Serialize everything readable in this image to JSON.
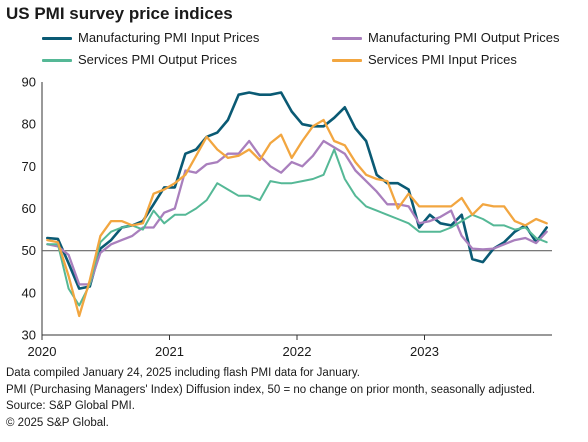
{
  "title": "US PMI survey price indices",
  "notes": [
    "Data compiled January 24, 2025 including flash PMI data for January.",
    "PMI (Purchasing Managers' Index) Diffusion index, 50 = no change on prior month, seasonally adjusted.",
    "Source: S&P Global PMI.",
    "© 2025 S&P Global."
  ],
  "chart_data": {
    "type": "line",
    "title": "US PMI survey price indices",
    "ylim": [
      30,
      90
    ],
    "yticks": [
      30,
      40,
      50,
      60,
      70,
      80,
      90
    ],
    "xticks": [
      "2020",
      "2021",
      "2022",
      "2023"
    ],
    "x_start": "2020-01",
    "x_end": "2023-12",
    "reference_line": 50,
    "grid": false,
    "legend_position": "top",
    "x": [
      "2020-01",
      "2020-02",
      "2020-03",
      "2020-04",
      "2020-05",
      "2020-06",
      "2020-07",
      "2020-08",
      "2020-09",
      "2020-10",
      "2020-11",
      "2020-12",
      "2021-01",
      "2021-02",
      "2021-03",
      "2021-04",
      "2021-05",
      "2021-06",
      "2021-07",
      "2021-08",
      "2021-09",
      "2021-10",
      "2021-11",
      "2021-12",
      "2022-01",
      "2022-02",
      "2022-03",
      "2022-04",
      "2022-05",
      "2022-06",
      "2022-07",
      "2022-08",
      "2022-09",
      "2022-10",
      "2022-11",
      "2022-12",
      "2023-01",
      "2023-02",
      "2023-03",
      "2023-04",
      "2023-05",
      "2023-06",
      "2023-07",
      "2023-08",
      "2023-09",
      "2023-10",
      "2023-11",
      "2023-12"
    ],
    "series": [
      {
        "name": "Manufacturing PMI Input Prices",
        "color": "#0a5a74",
        "width": 2.6,
        "values": [
          53.0,
          52.8,
          47.0,
          41.0,
          41.5,
          50.5,
          52.5,
          55.5,
          56.0,
          57.0,
          61.0,
          65.0,
          65.0,
          73.0,
          74.0,
          77.0,
          78.0,
          81.0,
          87.0,
          87.5,
          87.0,
          87.0,
          87.5,
          83.0,
          80.0,
          79.5,
          79.5,
          81.5,
          84.0,
          79.0,
          76.0,
          68.0,
          66.0,
          66.0,
          64.5,
          55.5,
          58.5,
          56.5,
          56.0,
          58.5,
          48.0,
          47.3,
          50.5,
          52.0,
          54.5,
          56.0,
          52.0,
          55.5
        ]
      },
      {
        "name": "Manufacturing PMI Output Prices",
        "color": "#a97fbd",
        "width": 2.3,
        "values": [
          51.5,
          51.0,
          49.0,
          42.0,
          42.0,
          49.5,
          51.5,
          52.5,
          53.5,
          55.5,
          55.5,
          59.0,
          60.0,
          69.0,
          68.5,
          70.5,
          71.0,
          73.0,
          73.0,
          76.0,
          72.5,
          70.0,
          68.5,
          71.0,
          70.0,
          72.5,
          76.0,
          74.5,
          73.0,
          69.0,
          66.5,
          64.0,
          61.0,
          61.0,
          60.5,
          56.5,
          57.0,
          58.0,
          59.5,
          53.5,
          50.5,
          50.3,
          50.5,
          51.5,
          52.5,
          53.0,
          51.8,
          54.5
        ]
      },
      {
        "name": "Services PMI Output Prices",
        "color": "#55b896",
        "width": 2.0,
        "values": [
          51.5,
          51.5,
          41.0,
          37.0,
          42.0,
          52.0,
          54.5,
          55.5,
          56.0,
          55.0,
          59.5,
          56.5,
          58.5,
          58.5,
          60.0,
          62.0,
          66.0,
          64.5,
          63.0,
          63.0,
          62.0,
          66.5,
          66.0,
          66.0,
          66.5,
          67.0,
          68.0,
          74.0,
          67.0,
          63.0,
          60.5,
          59.5,
          58.5,
          57.5,
          56.5,
          54.5,
          54.5,
          54.5,
          55.5,
          57.0,
          58.5,
          57.5,
          56.0,
          56.0,
          55.0,
          55.5,
          53.0,
          52.0
        ]
      },
      {
        "name": "Services PMI Input Prices",
        "color": "#f2a640",
        "width": 2.3,
        "values": [
          52.5,
          52.0,
          44.0,
          34.5,
          43.0,
          53.5,
          57.0,
          57.0,
          56.0,
          56.5,
          63.5,
          64.5,
          66.0,
          68.0,
          72.5,
          77.0,
          74.0,
          72.0,
          72.5,
          74.0,
          71.5,
          75.5,
          77.5,
          72.0,
          76.0,
          79.5,
          81.0,
          76.0,
          75.0,
          71.0,
          68.0,
          67.0,
          66.5,
          60.0,
          63.5,
          60.5,
          60.5,
          60.5,
          60.5,
          62.5,
          58.5,
          61.0,
          60.5,
          60.5,
          57.0,
          56.0,
          57.5,
          56.5
        ]
      }
    ]
  }
}
